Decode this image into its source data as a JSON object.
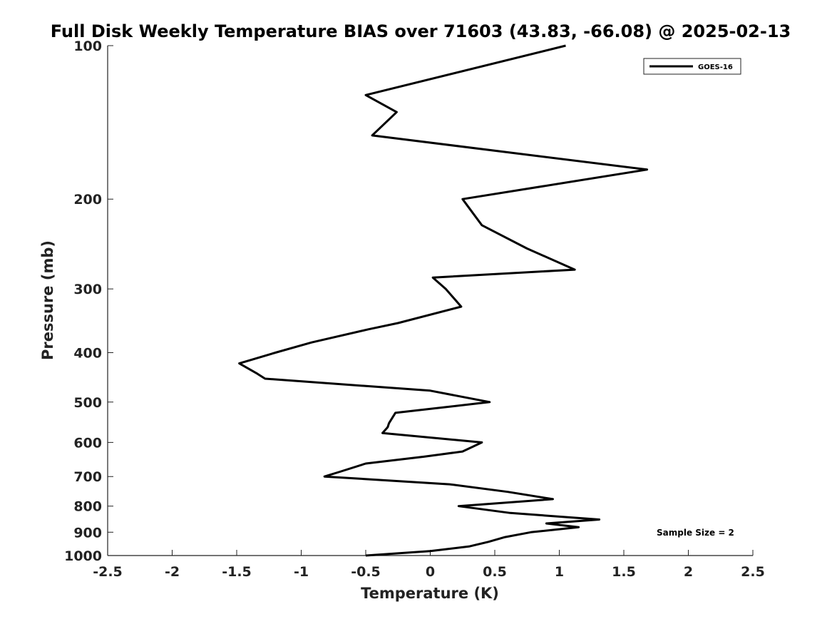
{
  "chart_data": {
    "type": "line",
    "title": "Full Disk Weekly Temperature BIAS over 71603 (43.83, -66.08) @ 2025-02-13",
    "xlabel": "Temperature (K)",
    "ylabel": "Pressure (mb)",
    "xlim": [
      -2.5,
      2.5
    ],
    "ylim": [
      100,
      1000
    ],
    "y_scale": "log",
    "y_reversed": true,
    "x_ticks": [
      -2.5,
      -2,
      -1.5,
      -1,
      -0.5,
      0,
      0.5,
      1,
      1.5,
      2,
      2.5
    ],
    "x_tick_labels": [
      "-2.5",
      "-2",
      "-1.5",
      "-1",
      "-0.5",
      "0",
      "0.5",
      "1",
      "1.5",
      "2",
      "2.5"
    ],
    "y_ticks": [
      100,
      200,
      300,
      400,
      500,
      600,
      700,
      800,
      900,
      1000
    ],
    "y_tick_labels": [
      "100",
      "200",
      "300",
      "400",
      "500",
      "600",
      "700",
      "800",
      "900",
      "1000"
    ],
    "grid": false,
    "legend_position": "top-right",
    "annotation": "Sample Size = 2",
    "series": [
      {
        "name": "GOES-16",
        "color": "#000000",
        "points": [
          {
            "x": 1.05,
            "y": 100
          },
          {
            "x": -0.5,
            "y": 125
          },
          {
            "x": -0.26,
            "y": 135
          },
          {
            "x": -0.45,
            "y": 150
          },
          {
            "x": 1.68,
            "y": 175
          },
          {
            "x": 0.25,
            "y": 200
          },
          {
            "x": 0.4,
            "y": 225
          },
          {
            "x": 0.75,
            "y": 250
          },
          {
            "x": 1.12,
            "y": 275
          },
          {
            "x": 0.02,
            "y": 285
          },
          {
            "x": 0.12,
            "y": 300
          },
          {
            "x": 0.24,
            "y": 325
          },
          {
            "x": -0.25,
            "y": 350
          },
          {
            "x": -0.48,
            "y": 360
          },
          {
            "x": -0.92,
            "y": 382
          },
          {
            "x": -1.2,
            "y": 400
          },
          {
            "x": -1.48,
            "y": 420
          },
          {
            "x": -1.34,
            "y": 440
          },
          {
            "x": -1.28,
            "y": 450
          },
          {
            "x": 0.0,
            "y": 475
          },
          {
            "x": 0.46,
            "y": 500
          },
          {
            "x": -0.27,
            "y": 525
          },
          {
            "x": -0.32,
            "y": 550
          },
          {
            "x": -0.33,
            "y": 560
          },
          {
            "x": -0.37,
            "y": 575
          },
          {
            "x": 0.4,
            "y": 600
          },
          {
            "x": 0.25,
            "y": 625
          },
          {
            "x": -0.05,
            "y": 640
          },
          {
            "x": -0.5,
            "y": 660
          },
          {
            "x": -0.7,
            "y": 685
          },
          {
            "x": -0.82,
            "y": 700
          },
          {
            "x": 0.15,
            "y": 725
          },
          {
            "x": 0.6,
            "y": 750
          },
          {
            "x": 0.95,
            "y": 775
          },
          {
            "x": 0.22,
            "y": 800
          },
          {
            "x": 0.62,
            "y": 825
          },
          {
            "x": 1.31,
            "y": 850
          },
          {
            "x": 0.9,
            "y": 865
          },
          {
            "x": 1.15,
            "y": 880
          },
          {
            "x": 0.78,
            "y": 900
          },
          {
            "x": 0.58,
            "y": 920
          },
          {
            "x": 0.45,
            "y": 940
          },
          {
            "x": 0.3,
            "y": 960
          },
          {
            "x": 0.0,
            "y": 980
          },
          {
            "x": -0.5,
            "y": 1000
          }
        ]
      }
    ]
  }
}
